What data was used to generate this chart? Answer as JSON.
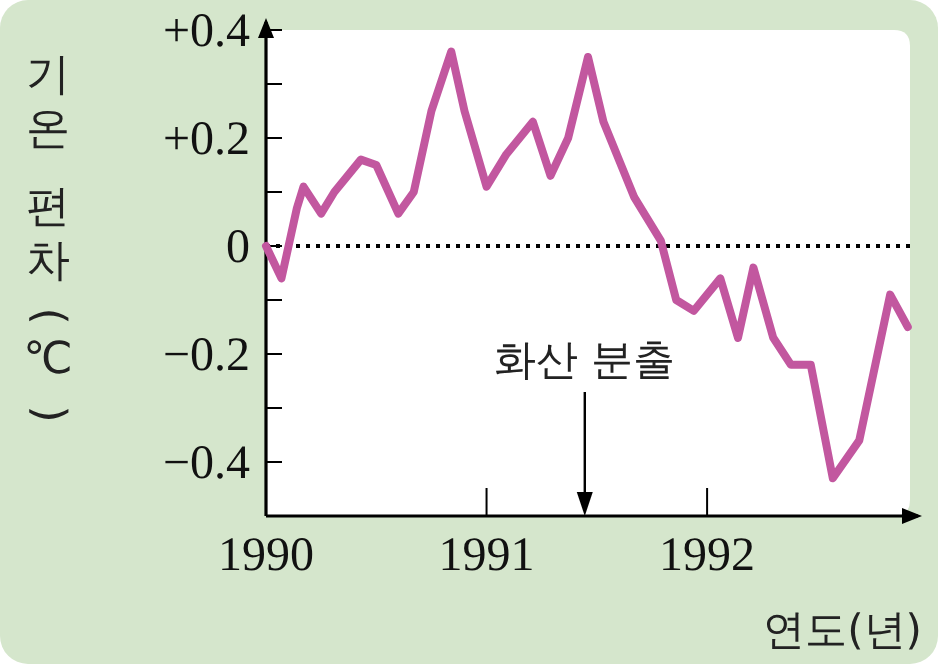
{
  "chart_data": {
    "type": "line",
    "ylabel": "기온 편차(℃)",
    "xlabel": "연도(년)",
    "xlim": [
      1990,
      1992.92
    ],
    "ylim": [
      -0.5,
      0.4
    ],
    "xticks": [
      1990,
      1991,
      1992
    ],
    "yticks": [
      {
        "value": 0.4,
        "label": "+0.4"
      },
      {
        "value": 0.3,
        "label": null
      },
      {
        "value": 0.2,
        "label": "+0.2"
      },
      {
        "value": 0.1,
        "label": null
      },
      0,
      {
        "value": -0.1,
        "label": null
      },
      {
        "value": -0.2,
        "label": "−0.2"
      },
      {
        "value": -0.3,
        "label": null
      },
      {
        "value": -0.4,
        "label": "−0.4"
      }
    ],
    "grid": false,
    "marker": "none",
    "line_style": "solid",
    "ref_lines": [
      {
        "axis": "y",
        "value": 0,
        "color": "#000000",
        "line_style": "dotted"
      }
    ],
    "annotations": [
      "화산 분출"
    ],
    "series": [
      {
        "color": "#c2579f",
        "x": [
          1990.0,
          1990.07,
          1990.14,
          1990.17,
          1990.25,
          1990.31,
          1990.43,
          1990.5,
          1990.6,
          1990.67,
          1990.75,
          1990.84,
          1990.9,
          1991.0,
          1991.09,
          1991.21,
          1991.29,
          1991.37,
          1991.46,
          1991.53,
          1991.67,
          1991.79,
          1991.86,
          1991.94,
          1992.06,
          1992.14,
          1992.21,
          1992.3,
          1992.38,
          1992.47,
          1992.57,
          1992.69,
          1992.83,
          1992.91
        ],
        "values": [
          0,
          -0.06,
          0.07,
          0.11,
          0.06,
          0.1,
          0.16,
          0.15,
          0.06,
          0.1,
          0.25,
          0.36,
          0.25,
          0.11,
          0.17,
          0.23,
          0.13,
          0.2,
          0.35,
          0.23,
          0.09,
          0.01,
          -0.1,
          -0.12,
          -0.06,
          -0.17,
          -0.04,
          -0.17,
          -0.22,
          -0.22,
          -0.43,
          -0.36,
          -0.09,
          -0.15
        ]
      }
    ]
  }
}
